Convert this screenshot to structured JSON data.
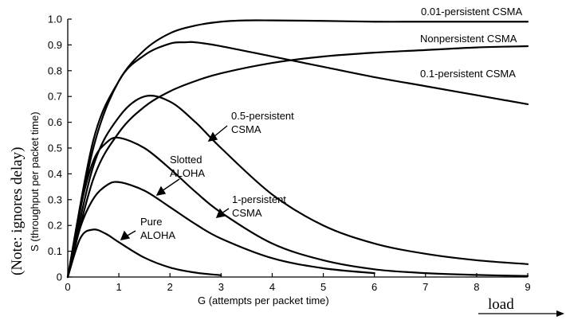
{
  "chart_data": {
    "type": "line",
    "title": "",
    "xlabel": "G (attempts per packet time)",
    "ylabel": "S (throughput per packet time)",
    "xlim": [
      0,
      9
    ],
    "ylim": [
      0,
      1.0
    ],
    "x_ticks": [
      "0",
      "1",
      "2",
      "3",
      "4",
      "5",
      "6",
      "7",
      "8",
      "9"
    ],
    "y_ticks": [
      "0",
      "0.1",
      "0.2",
      "0.3",
      "0.4",
      "0.5",
      "0.6",
      "0.7",
      "0.8",
      "0.9",
      "1.0"
    ],
    "grid": false,
    "side_note": "(Note: ignores delay)",
    "bottom_note": "load",
    "series": [
      {
        "name": "0.01-persistent CSMA",
        "x": [
          0,
          0.5,
          1,
          1.5,
          2,
          2.5,
          3,
          3.5,
          4,
          5,
          6,
          7,
          8,
          9
        ],
        "y": [
          0,
          0.53,
          0.76,
          0.88,
          0.945,
          0.975,
          0.99,
          0.995,
          0.995,
          0.993,
          0.99,
          0.99,
          0.99,
          0.99
        ]
      },
      {
        "name": "Nonpersistent CSMA",
        "x": [
          0,
          0.5,
          1,
          1.5,
          2,
          2.3,
          2.5,
          3,
          4,
          5,
          6,
          7,
          8,
          9
        ],
        "y": [
          0,
          0.5,
          0.76,
          0.86,
          0.905,
          0.91,
          0.91,
          0.895,
          0.855,
          0.815,
          0.775,
          0.74,
          0.705,
          0.67
        ]
      },
      {
        "name": "0.1-persistent CSMA",
        "x": [
          0,
          0.5,
          1,
          1.5,
          2,
          2.5,
          3,
          4,
          5,
          6,
          7,
          8,
          9
        ],
        "y": [
          0,
          0.38,
          0.56,
          0.66,
          0.72,
          0.76,
          0.79,
          0.83,
          0.855,
          0.87,
          0.88,
          0.89,
          0.895
        ]
      },
      {
        "name": "0.5-persistent CSMA",
        "x": [
          0,
          0.5,
          1,
          1.5,
          2,
          2.5,
          3,
          4,
          5,
          6,
          7,
          8,
          9
        ],
        "y": [
          0,
          0.43,
          0.62,
          0.7,
          0.68,
          0.6,
          0.5,
          0.32,
          0.2,
          0.13,
          0.09,
          0.065,
          0.05
        ]
      },
      {
        "name": "Slotted ALOHA",
        "x": [
          0,
          0.25,
          0.5,
          0.75,
          1,
          1.5,
          2,
          2.5,
          3,
          4,
          5,
          6
        ],
        "y": [
          0,
          0.195,
          0.303,
          0.354,
          0.368,
          0.335,
          0.271,
          0.205,
          0.149,
          0.073,
          0.034,
          0.015
        ]
      },
      {
        "name": "1-persistent CSMA",
        "x": [
          0,
          0.25,
          0.5,
          0.75,
          1,
          1.5,
          2,
          2.5,
          3,
          4,
          5,
          6,
          7,
          8,
          9
        ],
        "y": [
          0,
          0.27,
          0.45,
          0.52,
          0.54,
          0.5,
          0.42,
          0.33,
          0.25,
          0.13,
          0.065,
          0.03,
          0.015,
          0.008,
          0.004
        ]
      },
      {
        "name": "Pure ALOHA",
        "x": [
          0,
          0.25,
          0.5,
          0.75,
          1,
          1.5,
          2,
          2.5,
          3
        ],
        "y": [
          0,
          0.152,
          0.184,
          0.167,
          0.135,
          0.075,
          0.037,
          0.017,
          0.007
        ]
      }
    ],
    "annotations": [
      {
        "text": "0.01-persistent CSMA"
      },
      {
        "text": "Nonpersistent CSMA"
      },
      {
        "text": "0.1-persistent CSMA"
      },
      {
        "text": "0.5-persistent"
      },
      {
        "text": "CSMA"
      },
      {
        "text": "Slotted"
      },
      {
        "text": "ALOHA"
      },
      {
        "text": "1-persistent"
      },
      {
        "text": "CSMA"
      },
      {
        "text": "Pure"
      },
      {
        "text": "ALOHA"
      }
    ]
  }
}
